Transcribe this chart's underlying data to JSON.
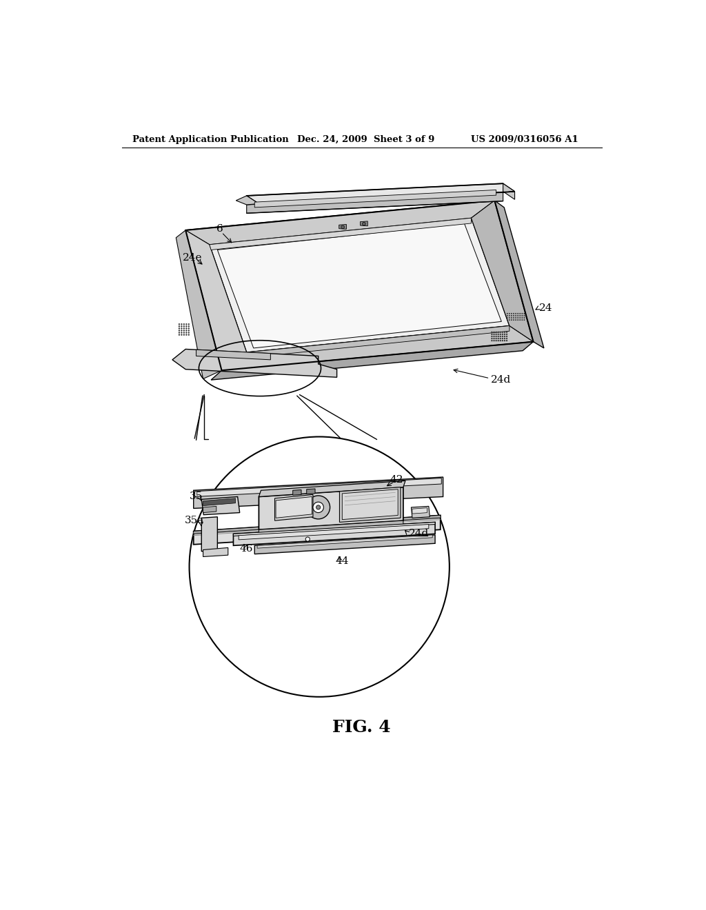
{
  "background_color": "#ffffff",
  "header_left": "Patent Application Publication",
  "header_mid": "Dec. 24, 2009  Sheet 3 of 9",
  "header_right": "US 2009/0316056 A1",
  "figure_caption": "FIG. 4",
  "label_fontsize": 11,
  "caption_fontsize": 18
}
